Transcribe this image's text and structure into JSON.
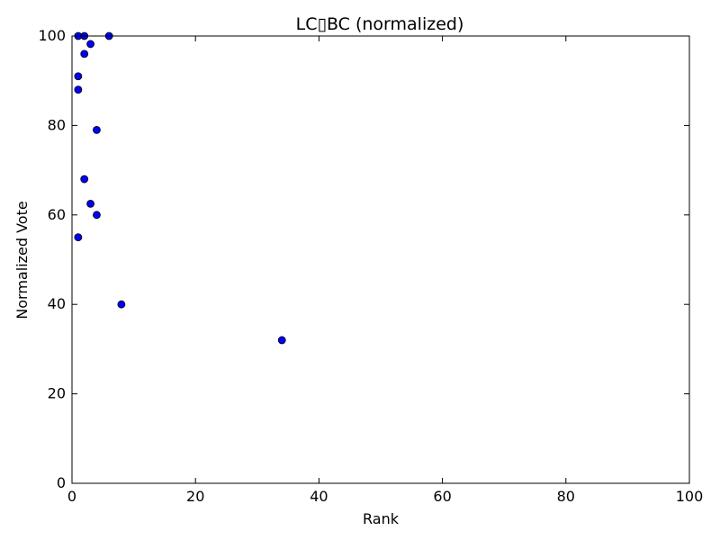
{
  "chart_data": {
    "type": "scatter",
    "title": "LC▯BC (normalized)",
    "xlabel": "Rank",
    "ylabel": "Normalized Vote",
    "xlim": [
      0,
      100
    ],
    "ylim": [
      0,
      100
    ],
    "xticks": [
      0,
      20,
      40,
      60,
      80,
      100
    ],
    "yticks": [
      0,
      20,
      40,
      60,
      80,
      100
    ],
    "grid": false,
    "legend": "none",
    "marker_color": "#0000ff",
    "marker_edge_color": "#000000",
    "series": [
      {
        "points": [
          {
            "x": 1,
            "y": 100
          },
          {
            "x": 2,
            "y": 100
          },
          {
            "x": 6,
            "y": 100
          },
          {
            "x": 3,
            "y": 98.2
          },
          {
            "x": 2,
            "y": 96
          },
          {
            "x": 1,
            "y": 91
          },
          {
            "x": 1,
            "y": 88
          },
          {
            "x": 4,
            "y": 79
          },
          {
            "x": 2,
            "y": 68
          },
          {
            "x": 3,
            "y": 62.5
          },
          {
            "x": 4,
            "y": 60
          },
          {
            "x": 1,
            "y": 55
          },
          {
            "x": 8,
            "y": 40
          },
          {
            "x": 34,
            "y": 32
          }
        ]
      }
    ]
  }
}
